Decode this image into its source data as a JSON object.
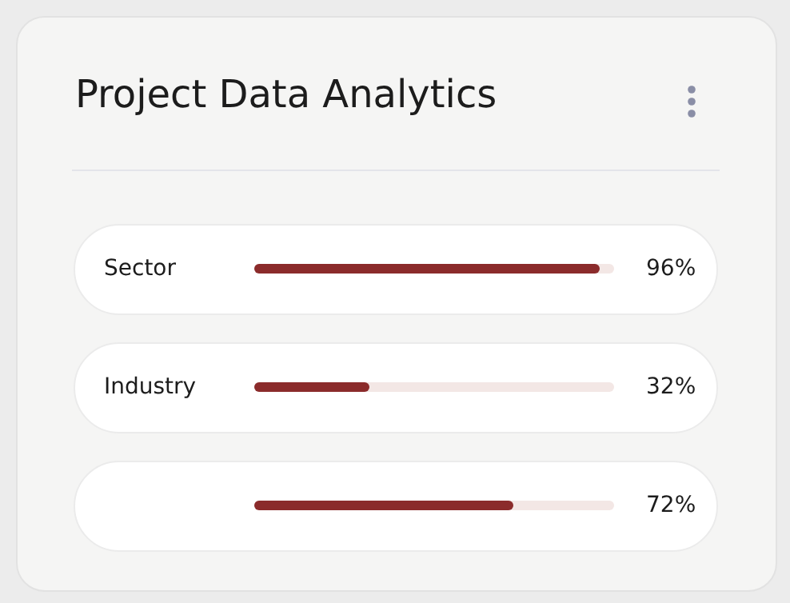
{
  "chart_data": {
    "type": "bar",
    "orientation": "horizontal",
    "title": "Project Data Analytics",
    "categories": [
      "Sector",
      "Industry",
      null
    ],
    "values": [
      96,
      32,
      72
    ],
    "value_labels": [
      "96%",
      "32%",
      "72%"
    ],
    "color": "#8b2b2b",
    "xlim": [
      0,
      100
    ],
    "tick_labels": "y"
  }
}
